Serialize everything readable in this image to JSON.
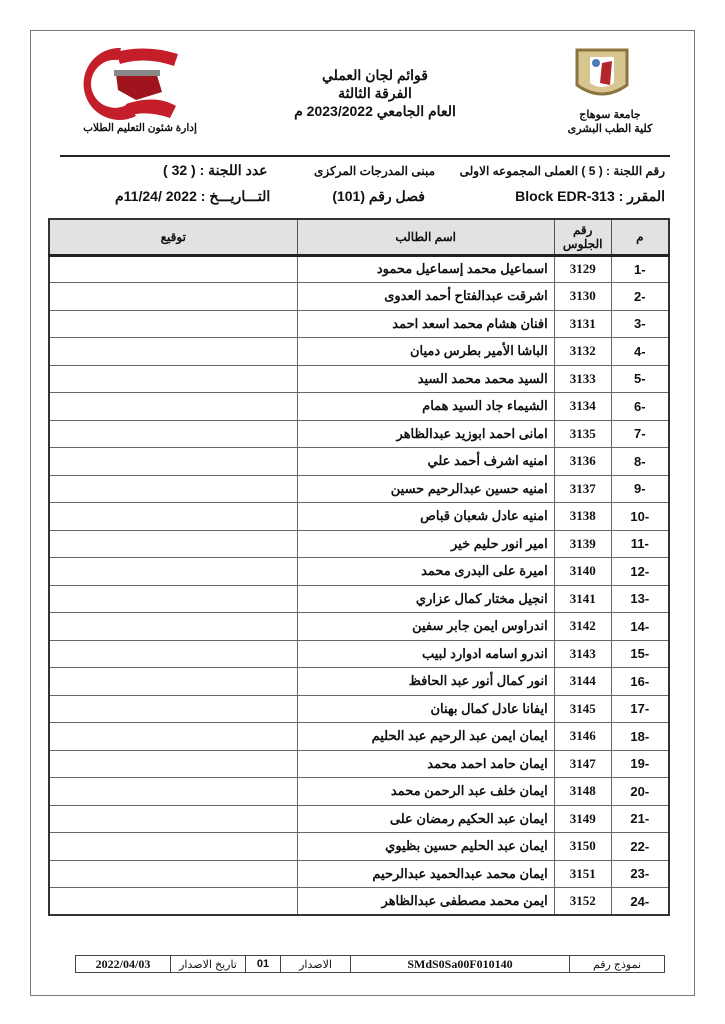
{
  "header": {
    "university": "جامعة سوهاج",
    "faculty": "كلية الطب البشرى",
    "department": "إدارة شئون التعليم الطلاب",
    "title_line1": "قوائم لجان العملي",
    "title_line2": "الفرقة الثالثة",
    "title_line3": "العام الجامعي 2023/2022 م",
    "left_logo_text": "جامعة سوهاج - كلية الطب"
  },
  "info": {
    "committee_no": "رقم اللجنة : ( 5 ) العملى المجموعه الاولى",
    "building": "مبنى المدرجات المركزى",
    "committee_count": "عدد اللجنة : ( 32 )",
    "course": "المقرر : Block EDR-313",
    "classroom": "فصل رقم (101)",
    "date": "التـــاريـــخ : 2022 /11/24م"
  },
  "table": {
    "headers": {
      "index": "م",
      "seat": "رقم الجلوس",
      "name": "اسم الطالب",
      "signature": "توقيع"
    },
    "rows": [
      {
        "i": "-1",
        "seat": "3129",
        "name": "اسماعيل محمد إسماعيل محمود"
      },
      {
        "i": "-2",
        "seat": "3130",
        "name": "اشرقت عبدالفتاح أحمد العدوى"
      },
      {
        "i": "-3",
        "seat": "3131",
        "name": "افنان هشام محمد اسعد احمد"
      },
      {
        "i": "-4",
        "seat": "3132",
        "name": "الباشا الأمير بطرس دميان"
      },
      {
        "i": "-5",
        "seat": "3133",
        "name": "السيد محمد محمد السيد"
      },
      {
        "i": "-6",
        "seat": "3134",
        "name": "الشيماء جاد السيد همام"
      },
      {
        "i": "-7",
        "seat": "3135",
        "name": "امانى احمد ابوزيد عبدالظاهر"
      },
      {
        "i": "-8",
        "seat": "3136",
        "name": "امنيه اشرف أحمد علي"
      },
      {
        "i": "-9",
        "seat": "3137",
        "name": "امنيه حسين عبدالرحيم حسين"
      },
      {
        "i": "-10",
        "seat": "3138",
        "name": "امنيه عادل شعبان قباص"
      },
      {
        "i": "-11",
        "seat": "3139",
        "name": "امير انور حليم خير"
      },
      {
        "i": "-12",
        "seat": "3140",
        "name": "اميرة على البدرى محمد"
      },
      {
        "i": "-13",
        "seat": "3141",
        "name": "انجيل مختار كمال عزاري"
      },
      {
        "i": "-14",
        "seat": "3142",
        "name": "اندراوس ايمن جابر سفين"
      },
      {
        "i": "-15",
        "seat": "3143",
        "name": "اندرو اسامه ادوارد لبيب"
      },
      {
        "i": "-16",
        "seat": "3144",
        "name": "انور كمال أنور عبد الحافظ"
      },
      {
        "i": "-17",
        "seat": "3145",
        "name": "ايفانا عادل كمال بهنان"
      },
      {
        "i": "-18",
        "seat": "3146",
        "name": "ايمان ايمن عبد الرحيم عبد الحليم"
      },
      {
        "i": "-19",
        "seat": "3147",
        "name": "ايمان حامد احمد محمد"
      },
      {
        "i": "-20",
        "seat": "3148",
        "name": "ايمان خلف عبد الرحمن محمد"
      },
      {
        "i": "-21",
        "seat": "3149",
        "name": "ايمان عبد الحكيم رمضان على"
      },
      {
        "i": "-22",
        "seat": "3150",
        "name": "ايمان عبد الحليم حسين بظيوي"
      },
      {
        "i": "-23",
        "seat": "3151",
        "name": "ايمان محمد عبدالحميد عبدالرحيم"
      },
      {
        "i": "-24",
        "seat": "3152",
        "name": "ايمن محمد مصطفى عبدالظاهر"
      }
    ]
  },
  "footer": {
    "form_label": "نموذج رقم",
    "form_no": "SMdS0Sa00F010140",
    "version_label": "الاصدار",
    "version": "01",
    "issue_date_label": "تاريخ الاصدار",
    "issue_date": "2022/04/03"
  }
}
